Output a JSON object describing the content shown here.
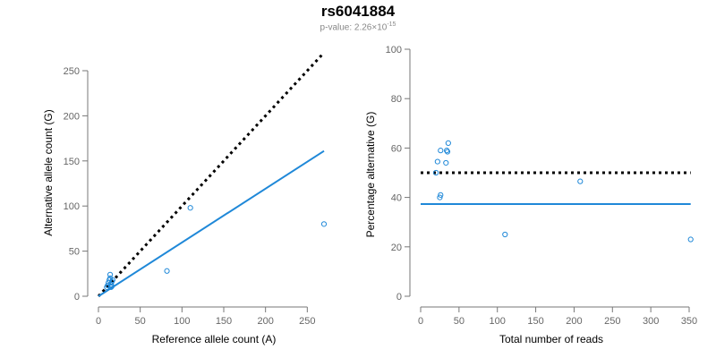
{
  "title": "rs6041884",
  "subtitle": {
    "prefix": "p-value: 2.26×10",
    "exponent": "-15"
  },
  "colors": {
    "points": "#1f88d8",
    "fit_line": "#1f88d8",
    "expected_line": "#000000",
    "axis": "#777777"
  },
  "chart_data": [
    {
      "type": "scatter",
      "xlabel": "Reference allele count (A)",
      "ylabel": "Alternative allele count (G)",
      "xlim": [
        0,
        270
      ],
      "ylim": [
        0,
        250
      ],
      "xticks": [
        0,
        50,
        100,
        150,
        200,
        250
      ],
      "yticks": [
        0,
        50,
        100,
        150,
        200,
        250
      ],
      "points": [
        {
          "x": 10,
          "y": 10
        },
        {
          "x": 11,
          "y": 12
        },
        {
          "x": 12,
          "y": 15
        },
        {
          "x": 13,
          "y": 18
        },
        {
          "x": 14,
          "y": 20
        },
        {
          "x": 14,
          "y": 24
        },
        {
          "x": 15,
          "y": 10
        },
        {
          "x": 15,
          "y": 13
        },
        {
          "x": 16,
          "y": 16
        },
        {
          "x": 16,
          "y": 11
        },
        {
          "x": 17,
          "y": 18
        },
        {
          "x": 82,
          "y": 28
        },
        {
          "x": 110,
          "y": 98
        },
        {
          "x": 270,
          "y": 80
        }
      ],
      "lines": [
        {
          "style": "dotted",
          "color": "#000000",
          "from": [
            0,
            0
          ],
          "to": [
            270,
            270
          ]
        },
        {
          "style": "solid",
          "color": "#1f88d8",
          "from": [
            0,
            0
          ],
          "to": [
            270,
            161
          ]
        }
      ]
    },
    {
      "type": "scatter",
      "xlabel": "Total number of reads",
      "ylabel": "Percentage alternative (G)",
      "xlim": [
        0,
        350
      ],
      "ylim": [
        0,
        100
      ],
      "xticks": [
        0,
        50,
        100,
        150,
        200,
        250,
        300,
        350
      ],
      "yticks": [
        0,
        20,
        40,
        60,
        80,
        100
      ],
      "points": [
        {
          "x": 20,
          "y": 50
        },
        {
          "x": 22,
          "y": 54.5
        },
        {
          "x": 25,
          "y": 40
        },
        {
          "x": 26,
          "y": 41
        },
        {
          "x": 26,
          "y": 59
        },
        {
          "x": 33,
          "y": 54
        },
        {
          "x": 34,
          "y": 59
        },
        {
          "x": 35,
          "y": 58.5
        },
        {
          "x": 36,
          "y": 62
        },
        {
          "x": 110,
          "y": 25
        },
        {
          "x": 208,
          "y": 46.5
        },
        {
          "x": 352,
          "y": 23
        }
      ],
      "lines": [
        {
          "style": "dotted",
          "color": "#000000",
          "from": [
            0,
            50
          ],
          "to": [
            352,
            50
          ]
        },
        {
          "style": "solid",
          "color": "#1f88d8",
          "from": [
            0,
            37.3
          ],
          "to": [
            352,
            37.3
          ]
        }
      ]
    }
  ]
}
